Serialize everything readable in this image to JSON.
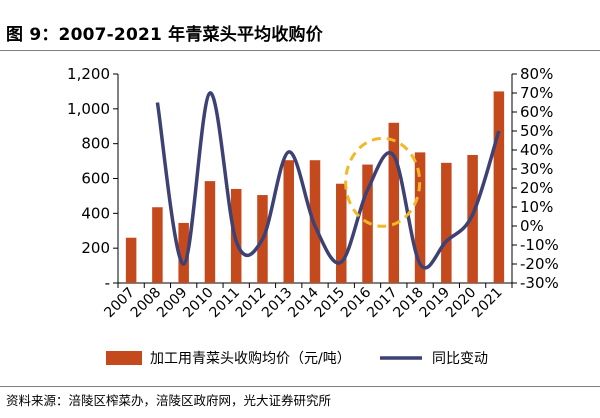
{
  "figure_title": "图 9：2007-2021 年青菜头平均收购价",
  "source": "资料来源：涪陵区榨菜办，涪陵区政府网，光大证券研究所",
  "colors": {
    "bar": "#C44A1E",
    "line": "#3D4174",
    "highlight": "#F2B829",
    "axis": "#000000"
  },
  "chart_data": {
    "type": "bar",
    "title": "",
    "xlabel": "",
    "categories": [
      "2007",
      "2008",
      "2009",
      "2010",
      "2011",
      "2012",
      "2013",
      "2014",
      "2015",
      "2016",
      "2017",
      "2018",
      "2019",
      "2020",
      "2021"
    ],
    "series": [
      {
        "name": "加工用青菜头收购均价（元/吨）",
        "type": "bar",
        "axis": "left",
        "values": [
          260,
          435,
          345,
          585,
          540,
          505,
          705,
          705,
          570,
          680,
          920,
          750,
          690,
          735,
          1100
        ]
      },
      {
        "name": "同比变动",
        "type": "line",
        "axis": "right",
        "values": [
          null,
          0.65,
          -0.2,
          0.7,
          -0.08,
          -0.07,
          0.39,
          0.0,
          -0.19,
          0.19,
          0.37,
          -0.2,
          -0.08,
          0.06,
          0.5
        ]
      }
    ],
    "y_left": {
      "ylim": [
        0,
        1200
      ],
      "ticks": [
        0,
        200,
        400,
        600,
        800,
        1000,
        1200
      ],
      "tick_labels": [
        "-",
        "200",
        "400",
        "600",
        "800",
        "1,000",
        "1,200"
      ]
    },
    "y_right": {
      "ylim": [
        -0.3,
        0.8
      ],
      "ticks": [
        -0.3,
        -0.2,
        -0.1,
        0,
        0.1,
        0.2,
        0.3,
        0.4,
        0.5,
        0.6,
        0.7,
        0.8
      ],
      "tick_labels": [
        "-30%",
        "-20%",
        "-10%",
        "0%",
        "10%",
        "20%",
        "30%",
        "40%",
        "50%",
        "60%",
        "70%",
        "80%"
      ]
    },
    "grid": false,
    "legend_position": "bottom",
    "annotations": [
      {
        "type": "dashed-ellipse",
        "around_category": "2016-2017",
        "color": "#F2B829"
      }
    ]
  }
}
